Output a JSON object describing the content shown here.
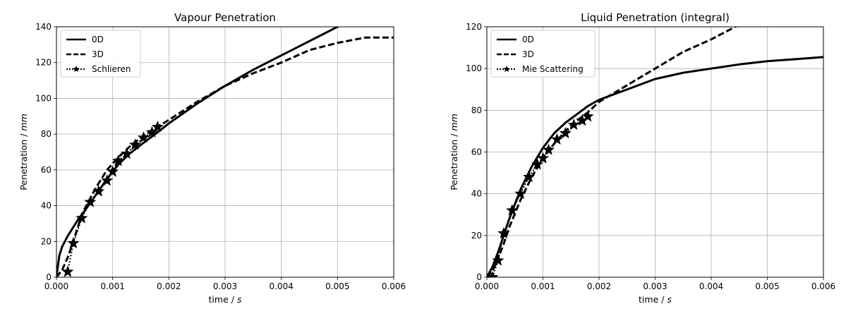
{
  "chart_data": [
    {
      "type": "line",
      "title": "Vapour Penetration",
      "xlabel": "time / s",
      "ylabel": "Penetration / mm",
      "xlim": [
        0,
        0.006
      ],
      "ylim": [
        0,
        140
      ],
      "xticks": [
        "0.000",
        "0.001",
        "0.002",
        "0.003",
        "0.004",
        "0.005",
        "0.006"
      ],
      "yticks": [
        "0",
        "20",
        "40",
        "60",
        "80",
        "100",
        "120",
        "140"
      ],
      "grid": true,
      "legend_position": "top-left",
      "series": [
        {
          "name": "0D",
          "style": "solid",
          "x": [
            0,
            5e-05,
            0.0001,
            0.0002,
            0.0003,
            0.0004,
            0.0005,
            0.0007,
            0.0009,
            0.0011,
            0.0013,
            0.0015,
            0.0018,
            0.002,
            0.0025,
            0.003,
            0.0035,
            0.004,
            0.0045,
            0.005,
            0.00505
          ],
          "y": [
            0,
            12,
            17,
            23,
            28,
            33,
            37,
            46,
            55,
            63,
            69,
            74,
            81,
            86,
            97,
            107,
            116,
            124,
            132,
            140,
            141
          ]
        },
        {
          "name": "3D",
          "style": "dashed",
          "x": [
            0,
            0.0001,
            0.0002,
            0.0003,
            0.0004,
            0.0005,
            0.0007,
            0.0009,
            0.0011,
            0.0013,
            0.0015,
            0.0018,
            0.002,
            0.0025,
            0.003,
            0.0035,
            0.004,
            0.0045,
            0.005,
            0.0055,
            0.006
          ],
          "y": [
            0,
            4,
            11,
            20,
            30,
            38,
            50,
            60,
            67,
            73,
            78,
            84,
            88,
            98,
            107,
            114,
            120,
            127,
            131,
            134,
            134
          ]
        },
        {
          "name": "Schlieren",
          "style": "dotted-star",
          "x": [
            0.0002,
            0.0003,
            0.00045,
            0.0006,
            0.00075,
            0.0009,
            0.001,
            0.0011,
            0.00125,
            0.0014,
            0.00155,
            0.0017,
            0.0018
          ],
          "y": [
            3,
            19,
            33,
            42,
            48,
            54,
            59,
            65,
            69,
            74,
            78,
            81,
            84
          ]
        }
      ]
    },
    {
      "type": "line",
      "title": "Liquid Penetration (integral)",
      "xlabel": "time / s",
      "ylabel": "Penetration / mm",
      "xlim": [
        0,
        0.006
      ],
      "ylim": [
        0,
        120
      ],
      "xticks": [
        "0.000",
        "0.001",
        "0.002",
        "0.003",
        "0.004",
        "0.005",
        "0.006"
      ],
      "yticks": [
        "0",
        "20",
        "40",
        "60",
        "80",
        "100",
        "120"
      ],
      "grid": true,
      "legend_position": "top-left",
      "series": [
        {
          "name": "0D",
          "style": "solid",
          "x": [
            0,
            0.0001,
            0.0002,
            0.0003,
            0.0004,
            0.0006,
            0.0008,
            0.001,
            0.0012,
            0.0014,
            0.0016,
            0.0018,
            0.002,
            0.0022,
            0.0025,
            0.003,
            0.0035,
            0.004,
            0.0045,
            0.005,
            0.0055,
            0.006
          ],
          "y": [
            0,
            5,
            12,
            20,
            28,
            42,
            53,
            62,
            69,
            74,
            78,
            82,
            85,
            87,
            90,
            95,
            98,
            100,
            102,
            103.5,
            104.5,
            105.5
          ]
        },
        {
          "name": "3D",
          "style": "dashed",
          "x": [
            0,
            0.0001,
            0.0002,
            0.0003,
            0.0004,
            0.0006,
            0.0008,
            0.001,
            0.0012,
            0.0014,
            0.0016,
            0.0018,
            0.002,
            0.0025,
            0.003,
            0.0035,
            0.004,
            0.0045
          ],
          "y": [
            0,
            3,
            9,
            16,
            24,
            37,
            48,
            57,
            64,
            70,
            75,
            79,
            84,
            92,
            100,
            108,
            114,
            121
          ]
        },
        {
          "name": "Mie Scattering",
          "style": "dotted-star",
          "x": [
            0.0001,
            0.0002,
            0.0003,
            0.00045,
            0.0006,
            0.00075,
            0.0009,
            0.001,
            0.0011,
            0.00125,
            0.0014,
            0.00155,
            0.0017,
            0.0018
          ],
          "y": [
            0,
            8,
            21,
            32,
            40,
            48,
            54,
            57,
            61,
            66,
            69,
            73,
            75,
            77
          ]
        }
      ]
    }
  ]
}
